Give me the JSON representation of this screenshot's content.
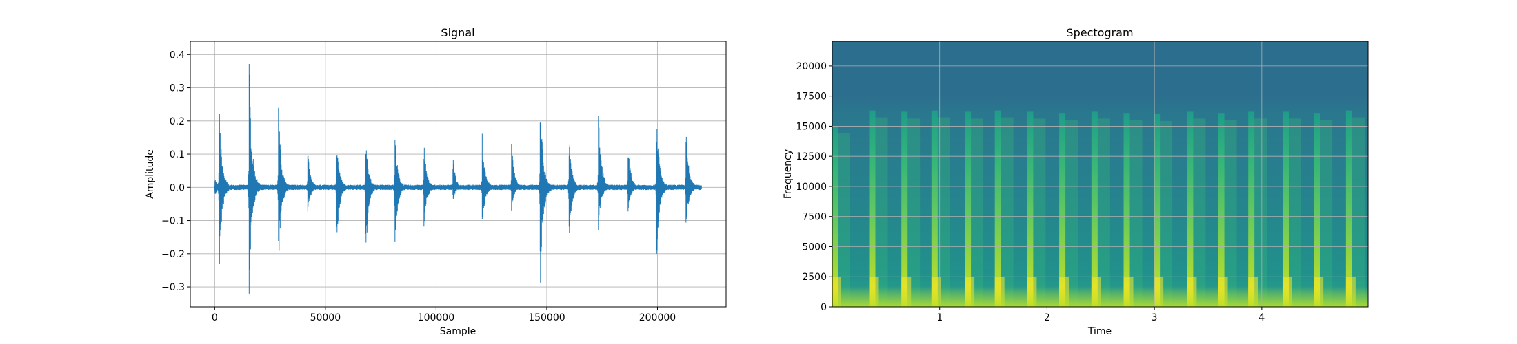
{
  "chart_data": [
    {
      "type": "line",
      "title": "Signal",
      "xlabel": "Sample",
      "ylabel": "Amplitude",
      "xlim": [
        -11000,
        231000
      ],
      "ylim": [
        -0.36,
        0.44
      ],
      "xticks": [
        0,
        50000,
        100000,
        150000,
        200000
      ],
      "xtick_labels": [
        "0",
        "50000",
        "100000",
        "150000",
        "200000"
      ],
      "yticks": [
        -0.3,
        -0.2,
        -0.1,
        0.0,
        0.1,
        0.2,
        0.3,
        0.4
      ],
      "ytick_labels": [
        "−0.3",
        "−0.2",
        "−0.1",
        "0.0",
        "0.1",
        "0.2",
        "0.3",
        "0.4"
      ],
      "grid": true,
      "series_color": "#1f77b4",
      "series": [
        {
          "x": [
            0,
            2000,
            15500,
            28800,
            42000,
            55000,
            68200,
            81300,
            94500,
            107600,
            120800,
            134000,
            147000,
            160000,
            173300,
            186600,
            199600,
            212800,
            220000
          ],
          "max": [
            0.03,
            0.25,
            0.4,
            0.24,
            0.11,
            0.16,
            0.16,
            0.18,
            0.14,
            0.09,
            0.16,
            0.15,
            0.29,
            0.17,
            0.26,
            0.14,
            0.23,
            0.19,
            0.0
          ],
          "min": [
            -0.03,
            -0.26,
            -0.33,
            -0.24,
            -0.08,
            -0.19,
            -0.22,
            -0.2,
            -0.13,
            -0.04,
            -0.13,
            -0.07,
            -0.32,
            -0.17,
            -0.14,
            -0.08,
            -0.24,
            -0.15,
            0.0
          ]
        }
      ]
    },
    {
      "type": "heatmap",
      "title": "Spectogram",
      "xlabel": "Time",
      "ylabel": "Frequency",
      "xlim": [
        0.0,
        4.99
      ],
      "ylim": [
        0,
        22050
      ],
      "xticks": [
        1,
        2,
        3,
        4
      ],
      "xtick_labels": [
        "1",
        "2",
        "3",
        "4"
      ],
      "yticks": [
        0,
        2500,
        5000,
        7500,
        10000,
        12500,
        15000,
        17500,
        20000
      ],
      "ytick_labels": [
        "0",
        "2500",
        "5000",
        "7500",
        "10000",
        "12500",
        "15000",
        "17500",
        "20000"
      ],
      "grid": true,
      "colormap": [
        "#440154",
        "#3b528b",
        "#21918c",
        "#5ec962",
        "#fde725"
      ],
      "background_color": "#2a6c8e",
      "onset_times": [
        0.0,
        0.35,
        0.65,
        0.93,
        1.24,
        1.52,
        1.82,
        2.12,
        2.42,
        2.72,
        3.0,
        3.31,
        3.6,
        3.88,
        4.2,
        4.49,
        4.79
      ],
      "onset_max_freq": [
        15000,
        16300,
        16200,
        16300,
        16200,
        16300,
        16200,
        16100,
        16200,
        16100,
        16000,
        16200,
        16100,
        16200,
        16200,
        16100,
        16300
      ]
    }
  ]
}
